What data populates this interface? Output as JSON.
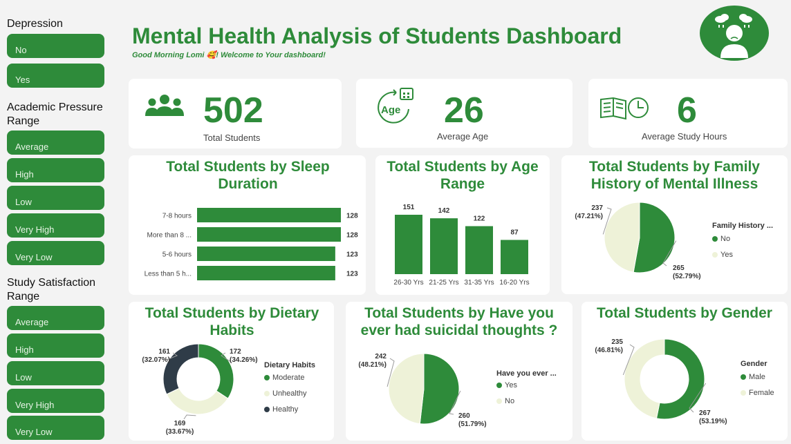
{
  "colors": {
    "accent": "#2e8b3a",
    "light": "#eef2d8",
    "dark": "#2f3c48"
  },
  "header": {
    "title": "Mental Health Analysis of Students Dashboard",
    "greeting": "Good Morning Lomi 🥰! Welcome to Your dashboard!"
  },
  "slicers": {
    "depression": {
      "title": "Depression",
      "items": [
        "No",
        "Yes"
      ]
    },
    "academic_pressure": {
      "title": "Academic Pressure Range",
      "items": [
        "Average",
        "High",
        "Low",
        "Very High",
        "Very Low"
      ]
    },
    "study_satisfaction": {
      "title": "Study Satisfaction Range",
      "items": [
        "Average",
        "High",
        "Low",
        "Very High",
        "Very Low"
      ]
    }
  },
  "kpis": [
    {
      "value": "502",
      "label": "Total Students",
      "icon": "people-icon"
    },
    {
      "value": "26",
      "label": "Average Age",
      "icon": "age-calendar-icon",
      "icon_text": "Age"
    },
    {
      "value": "6",
      "label": "Average Study Hours",
      "icon": "book-clock-icon"
    }
  ],
  "chart_data": [
    {
      "id": "sleep",
      "type": "bar",
      "orientation": "horizontal",
      "title": "Total Students by Sleep Duration",
      "categories": [
        "7-8 hours",
        "More than 8 ...",
        "5-6 hours",
        "Less than 5 h..."
      ],
      "values": [
        128,
        128,
        123,
        123
      ]
    },
    {
      "id": "age",
      "type": "bar",
      "title": "Total Students by Age Range",
      "categories": [
        "26-30 Yrs",
        "21-25 Yrs",
        "31-35 Yrs",
        "16-20 Yrs"
      ],
      "values": [
        151,
        142,
        122,
        87
      ]
    },
    {
      "id": "family",
      "type": "pie",
      "title": "Total Students by Family History of Mental Illness",
      "legend_title": "Family History ...",
      "slices": [
        {
          "label": "No",
          "value": 265,
          "pct": "52.79%",
          "color": "#2e8b3a"
        },
        {
          "label": "Yes",
          "value": 237,
          "pct": "47.21%",
          "color": "#eef2d8"
        }
      ]
    },
    {
      "id": "diet",
      "type": "donut",
      "title": "Total Students by Dietary Habits",
      "legend_title": "Dietary Habits",
      "slices": [
        {
          "label": "Moderate",
          "value": 172,
          "pct": "34.26%",
          "color": "#2e8b3a"
        },
        {
          "label": "Unhealthy",
          "value": 169,
          "pct": "33.67%",
          "color": "#eef2d8"
        },
        {
          "label": "Healthy",
          "value": 161,
          "pct": "32.07%",
          "color": "#2f3c48"
        }
      ]
    },
    {
      "id": "suicidal",
      "type": "pie",
      "title": "Total Students by Have you ever had suicidal thoughts ?",
      "legend_title": "Have you ever ...",
      "slices": [
        {
          "label": "Yes",
          "value": 260,
          "pct": "51.79%",
          "color": "#2e8b3a"
        },
        {
          "label": "No",
          "value": 242,
          "pct": "48.21%",
          "color": "#eef2d8"
        }
      ]
    },
    {
      "id": "gender",
      "type": "donut",
      "title": "Total Students by Gender",
      "legend_title": "Gender",
      "slices": [
        {
          "label": "Male",
          "value": 267,
          "pct": "53.19%",
          "color": "#2e8b3a"
        },
        {
          "label": "Female",
          "value": 235,
          "pct": "46.81%",
          "color": "#eef2d8"
        }
      ]
    }
  ]
}
